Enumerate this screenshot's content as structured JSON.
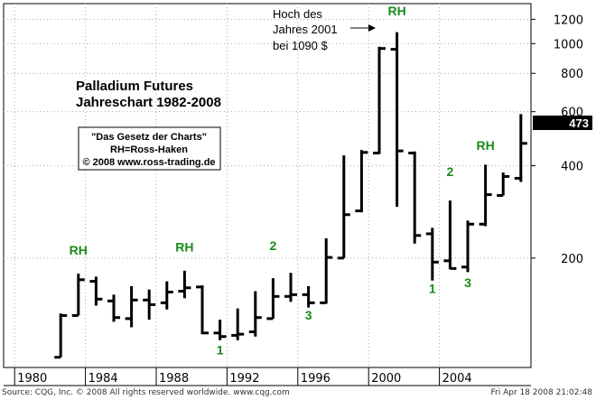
{
  "colors": {
    "bar": "#000000",
    "green_label": "#1a8a1a",
    "last_value_bg": "#000000",
    "grid": "#aaaaaa"
  },
  "chart_data": {
    "type": "ohlc",
    "title_line1": "Palladium Futures",
    "title_line2": "Jahreschart 1982-2008",
    "box_lines": [
      "\"Das Gesetz der Charts\"",
      "RH=Ross-Haken",
      "© 2008 www.ross-trading.de"
    ],
    "annotation_lines": [
      "Hoch des",
      "Jahres 2001",
      "bei 1090 $"
    ],
    "y_scale": "log",
    "ylim": [
      88,
      1350
    ],
    "y_ticks": [
      1200,
      1000,
      800,
      600,
      400,
      200
    ],
    "x_ticks": [
      "1980",
      "1984",
      "1988",
      "1992",
      "1996",
      "2000",
      "2004"
    ],
    "last_value": "473",
    "bars": [
      {
        "year": 1982,
        "open": 95,
        "high": 132,
        "low": 95,
        "close": 130
      },
      {
        "year": 1983,
        "open": 130,
        "high": 178,
        "low": 130,
        "close": 170
      },
      {
        "year": 1984,
        "open": 168,
        "high": 174,
        "low": 140,
        "close": 147
      },
      {
        "year": 1985,
        "open": 145,
        "high": 152,
        "low": 124,
        "close": 128
      },
      {
        "year": 1986,
        "open": 127,
        "high": 162,
        "low": 119,
        "close": 146
      },
      {
        "year": 1987,
        "open": 146,
        "high": 158,
        "low": 126,
        "close": 141
      },
      {
        "year": 1988,
        "open": 143,
        "high": 168,
        "low": 136,
        "close": 155
      },
      {
        "year": 1989,
        "open": 156,
        "high": 182,
        "low": 148,
        "close": 160
      },
      {
        "year": 1990,
        "open": 161,
        "high": 163,
        "low": 113,
        "close": 114
      },
      {
        "year": 1991,
        "open": 114,
        "high": 126,
        "low": 108,
        "close": 111
      },
      {
        "year": 1992,
        "open": 112,
        "high": 137,
        "low": 108,
        "close": 113
      },
      {
        "year": 1993,
        "open": 115,
        "high": 156,
        "low": 111,
        "close": 128
      },
      {
        "year": 1994,
        "open": 127,
        "high": 172,
        "low": 127,
        "close": 150
      },
      {
        "year": 1995,
        "open": 150,
        "high": 179,
        "low": 144,
        "close": 152
      },
      {
        "year": 1996,
        "open": 152,
        "high": 162,
        "low": 138,
        "close": 143
      },
      {
        "year": 1997,
        "open": 143,
        "high": 232,
        "low": 142,
        "close": 201
      },
      {
        "year": 1998,
        "open": 200,
        "high": 432,
        "low": 200,
        "close": 277
      },
      {
        "year": 1999,
        "open": 285,
        "high": 450,
        "low": 282,
        "close": 442
      },
      {
        "year": 2000,
        "open": 440,
        "high": 977,
        "low": 437,
        "close": 964
      },
      {
        "year": 2001,
        "open": 958,
        "high": 1090,
        "low": 294,
        "close": 447
      },
      {
        "year": 2002,
        "open": 440,
        "high": 445,
        "low": 223,
        "close": 237
      },
      {
        "year": 2003,
        "open": 240,
        "high": 251,
        "low": 169,
        "close": 194
      },
      {
        "year": 2004,
        "open": 196,
        "high": 308,
        "low": 184,
        "close": 185
      },
      {
        "year": 2005,
        "open": 187,
        "high": 265,
        "low": 180,
        "close": 258
      },
      {
        "year": 2006,
        "open": 258,
        "high": 403,
        "low": 254,
        "close": 322
      },
      {
        "year": 2007,
        "open": 320,
        "high": 380,
        "low": 320,
        "close": 369
      },
      {
        "year": 2008,
        "open": 364,
        "high": 589,
        "low": 354,
        "close": 473
      }
    ],
    "labels": [
      {
        "text": "RH",
        "year": 1983,
        "price": 205
      },
      {
        "text": "RH",
        "year": 1989,
        "price": 210
      },
      {
        "text": "RH",
        "year": 2001,
        "price": 1235
      },
      {
        "text": "RH",
        "year": 2006,
        "price": 450
      },
      {
        "text": "1",
        "year": 1991,
        "price": 97
      },
      {
        "text": "1",
        "year": 2003,
        "price": 154
      },
      {
        "text": "2",
        "year": 1994,
        "price": 212
      },
      {
        "text": "2",
        "year": 2004,
        "price": 370
      },
      {
        "text": "3",
        "year": 1996,
        "price": 126
      },
      {
        "text": "3",
        "year": 2005,
        "price": 161
      }
    ]
  },
  "footer": {
    "source": "Source: CQG, Inc. © 2008 All rights reserved worldwide. www.cqg.com",
    "date": "Fri Apr 18 2008 21:02:48"
  }
}
